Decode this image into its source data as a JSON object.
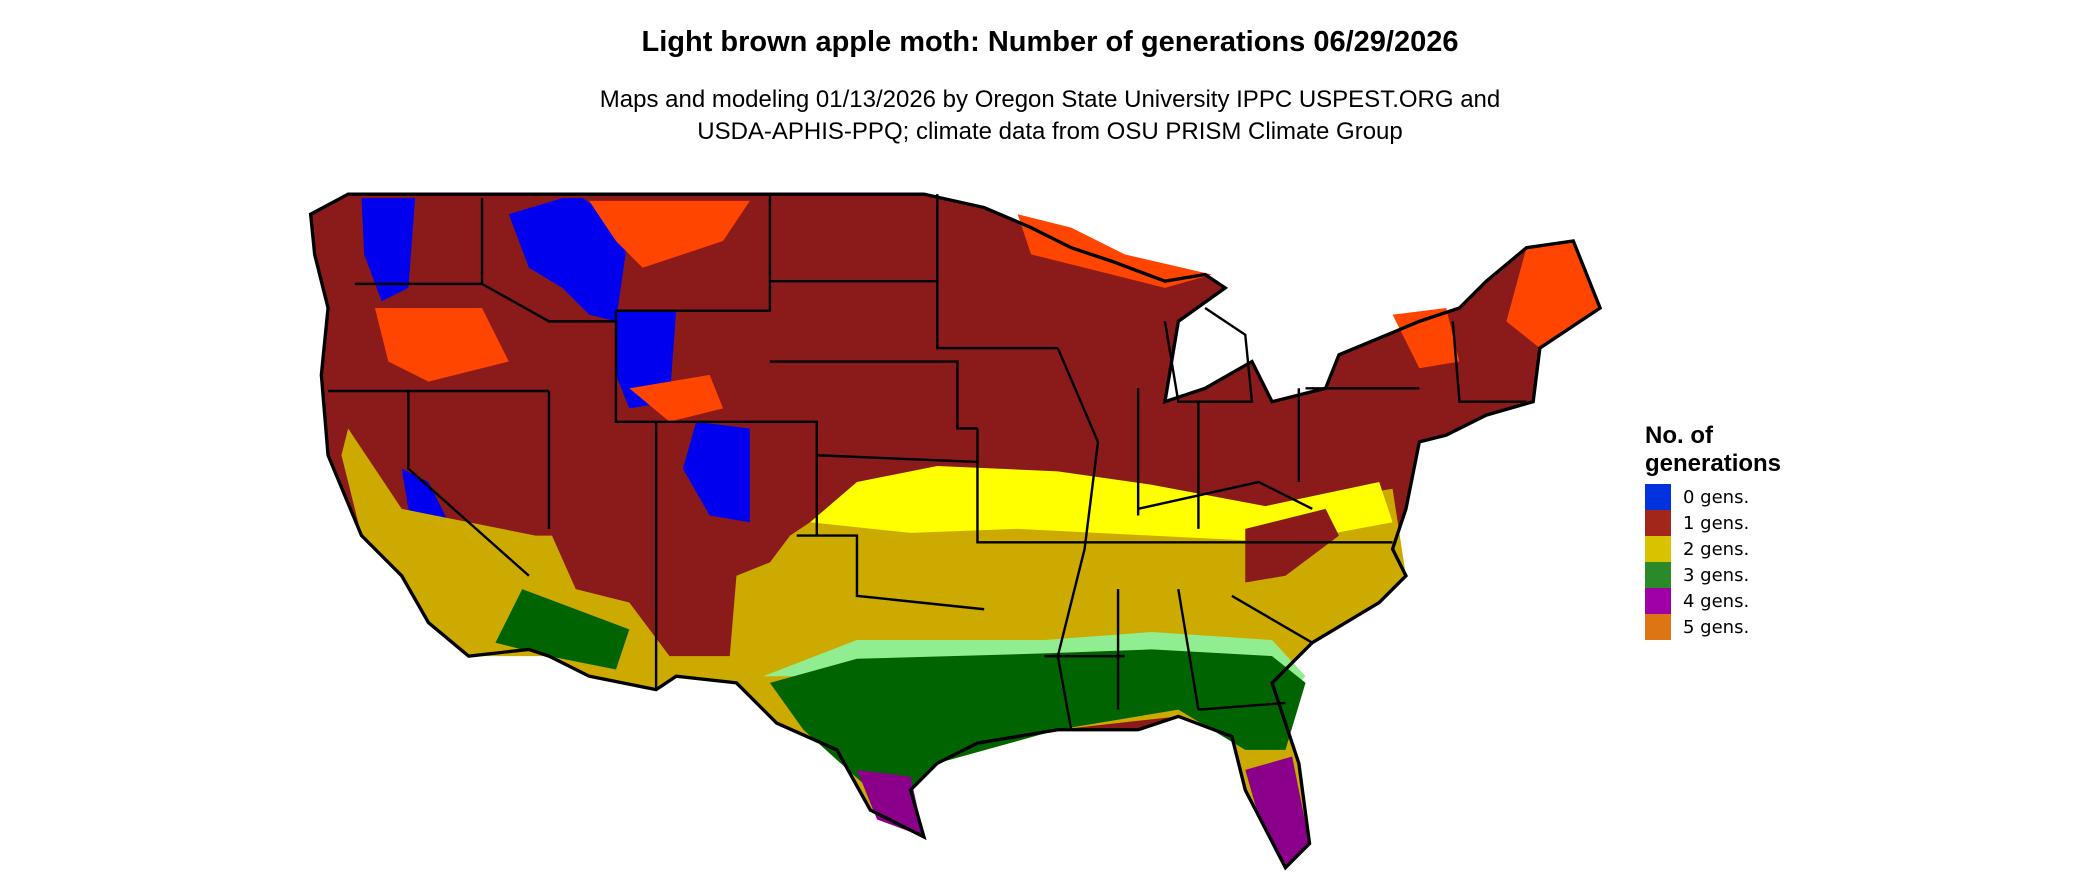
{
  "title": "Light brown apple moth: Number of generations 06/29/2026",
  "subtitle_lines": [
    "Maps and modeling 01/13/2026 by Oregon State University IPPC USPEST.ORG and",
    "USDA-APHIS-PPQ; climate data from OSU PRISM Climate Group"
  ],
  "legend": {
    "title_lines": [
      "No. of",
      "generations"
    ],
    "items": [
      {
        "label": "0 gens.",
        "color": "#0033dd"
      },
      {
        "label": "1 gens.",
        "color": "#a3261a"
      },
      {
        "label": "2 gens.",
        "color": "#d9c200"
      },
      {
        "label": "3 gens.",
        "color": "#2a8a2a"
      },
      {
        "label": "4 gens.",
        "color": "#a000a8"
      },
      {
        "label": "5 gens.",
        "color": "#dd7514"
      }
    ]
  },
  "map_colors": {
    "one_gen_dark": "#8b1a1a",
    "near_zero_orange": "#ff4500",
    "two_gen_light": "#ffff00",
    "two_gen": "#ccaa00",
    "three_gen_light": "#90ee90",
    "three_gen": "#006400",
    "four_gen": "#8b008b",
    "zero_gen": "#0000ee",
    "border": "#000000"
  }
}
